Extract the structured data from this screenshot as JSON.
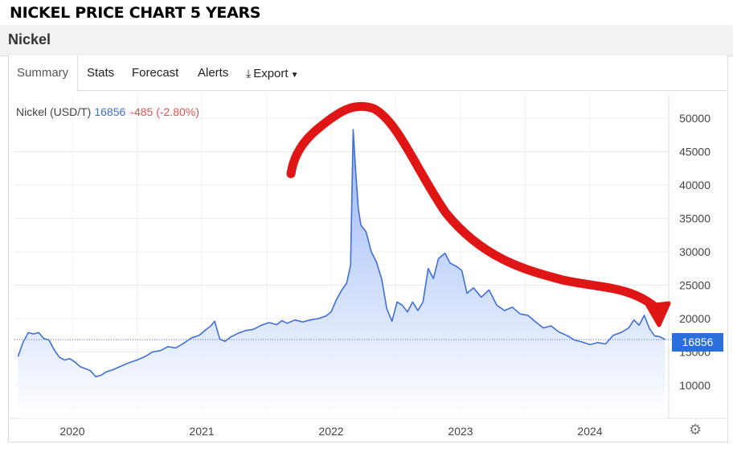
{
  "page": {
    "heading": "NICKEL PRICE CHART 5 YEARS",
    "title": "Nickel"
  },
  "tabs": [
    {
      "label": "Summary",
      "active": true
    },
    {
      "label": "Stats"
    },
    {
      "label": "Forecast"
    },
    {
      "label": "Alerts"
    },
    {
      "label": "Export",
      "icon": "download-icon",
      "has_dropdown": true
    }
  ],
  "legend": {
    "instrument": "Nickel (USD/T)",
    "price": "16856",
    "change": "-485 (-2.80%)"
  },
  "colors": {
    "line": "#3f6fd8",
    "fill_top": "#8fb0f4",
    "fill_bottom": "#ffffff",
    "annotation": "#e01515",
    "badge": "#2a6fdb",
    "change": "#d9534f"
  },
  "chart_data": {
    "type": "area",
    "title": "",
    "xlabel": "",
    "ylabel": "",
    "y_axis_side": "right",
    "ylim": [
      5000,
      53000
    ],
    "xlim": [
      2019.58,
      2024.58
    ],
    "yticks": [
      10000,
      15000,
      20000,
      25000,
      30000,
      35000,
      40000,
      45000,
      50000
    ],
    "ytick_labels": [
      "10000",
      "15000",
      "20000",
      "25000",
      "30000",
      "35000",
      "40000",
      "45000",
      "50000"
    ],
    "xticks": [
      2020,
      2021,
      2022,
      2023,
      2024
    ],
    "xtick_labels": [
      "2020",
      "2021",
      "2022",
      "2023",
      "2024"
    ],
    "grid": true,
    "last_value": 16856,
    "last_value_label": "16856",
    "series": [
      {
        "values": [
          [
            2019.58,
            14300
          ],
          [
            2019.62,
            16500
          ],
          [
            2019.66,
            17900
          ],
          [
            2019.7,
            17700
          ],
          [
            2019.74,
            17900
          ],
          [
            2019.78,
            17000
          ],
          [
            2019.82,
            16800
          ],
          [
            2019.86,
            15300
          ],
          [
            2019.9,
            14200
          ],
          [
            2019.94,
            13800
          ],
          [
            2019.98,
            14000
          ],
          [
            2020.02,
            13500
          ],
          [
            2020.06,
            12800
          ],
          [
            2020.1,
            12500
          ],
          [
            2020.14,
            12200
          ],
          [
            2020.18,
            11300
          ],
          [
            2020.22,
            11500
          ],
          [
            2020.26,
            12000
          ],
          [
            2020.32,
            12400
          ],
          [
            2020.38,
            12900
          ],
          [
            2020.44,
            13400
          ],
          [
            2020.5,
            13800
          ],
          [
            2020.56,
            14300
          ],
          [
            2020.62,
            15000
          ],
          [
            2020.68,
            15200
          ],
          [
            2020.74,
            15800
          ],
          [
            2020.8,
            15600
          ],
          [
            2020.86,
            16300
          ],
          [
            2020.92,
            17100
          ],
          [
            2020.98,
            17500
          ],
          [
            2021.03,
            18300
          ],
          [
            2021.07,
            18900
          ],
          [
            2021.1,
            19600
          ],
          [
            2021.14,
            16900
          ],
          [
            2021.18,
            16600
          ],
          [
            2021.22,
            17200
          ],
          [
            2021.28,
            17800
          ],
          [
            2021.34,
            18200
          ],
          [
            2021.4,
            18400
          ],
          [
            2021.46,
            19000
          ],
          [
            2021.52,
            19400
          ],
          [
            2021.58,
            19100
          ],
          [
            2021.62,
            19700
          ],
          [
            2021.66,
            19300
          ],
          [
            2021.72,
            19800
          ],
          [
            2021.78,
            19500
          ],
          [
            2021.84,
            19800
          ],
          [
            2021.9,
            20000
          ],
          [
            2021.96,
            20400
          ],
          [
            2022.0,
            21000
          ],
          [
            2022.04,
            22800
          ],
          [
            2022.08,
            24200
          ],
          [
            2022.12,
            25300
          ],
          [
            2022.15,
            28000
          ],
          [
            2022.17,
            48300
          ],
          [
            2022.19,
            42000
          ],
          [
            2022.21,
            36500
          ],
          [
            2022.23,
            34000
          ],
          [
            2022.27,
            33000
          ],
          [
            2022.31,
            30000
          ],
          [
            2022.35,
            28500
          ],
          [
            2022.39,
            26000
          ],
          [
            2022.43,
            21500
          ],
          [
            2022.47,
            19600
          ],
          [
            2022.51,
            22500
          ],
          [
            2022.55,
            22000
          ],
          [
            2022.59,
            21000
          ],
          [
            2022.63,
            22500
          ],
          [
            2022.67,
            21200
          ],
          [
            2022.71,
            22500
          ],
          [
            2022.75,
            27500
          ],
          [
            2022.79,
            26000
          ],
          [
            2022.83,
            29000
          ],
          [
            2022.88,
            29800
          ],
          [
            2022.92,
            28300
          ],
          [
            2022.97,
            27800
          ],
          [
            2023.01,
            27200
          ],
          [
            2023.05,
            23800
          ],
          [
            2023.1,
            24600
          ],
          [
            2023.16,
            23200
          ],
          [
            2023.22,
            24300
          ],
          [
            2023.28,
            22000
          ],
          [
            2023.34,
            21200
          ],
          [
            2023.4,
            21700
          ],
          [
            2023.46,
            20700
          ],
          [
            2023.52,
            20500
          ],
          [
            2023.58,
            19500
          ],
          [
            2023.64,
            18600
          ],
          [
            2023.7,
            18900
          ],
          [
            2023.76,
            18000
          ],
          [
            2023.82,
            17500
          ],
          [
            2023.88,
            16800
          ],
          [
            2023.94,
            16500
          ],
          [
            2024.0,
            16100
          ],
          [
            2024.06,
            16400
          ],
          [
            2024.12,
            16200
          ],
          [
            2024.18,
            17500
          ],
          [
            2024.24,
            17900
          ],
          [
            2024.3,
            18600
          ],
          [
            2024.34,
            19800
          ],
          [
            2024.38,
            19000
          ],
          [
            2024.42,
            20500
          ],
          [
            2024.46,
            18500
          ],
          [
            2024.5,
            17400
          ],
          [
            2024.54,
            17300
          ],
          [
            2024.58,
            16856
          ]
        ]
      }
    ]
  }
}
